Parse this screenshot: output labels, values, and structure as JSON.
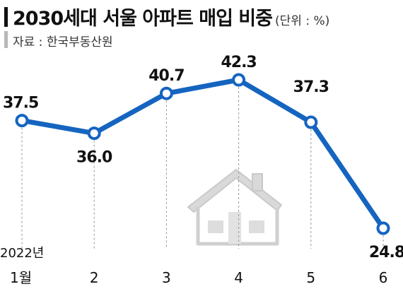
{
  "header": {
    "title": "2030세대 서울 아파트 매입 비중",
    "unit": "(단위 : %)",
    "source": "자료 : 한국부동산원"
  },
  "colors": {
    "line": "#1565c0",
    "marker_fill": "#ffffff",
    "guide": "#999999",
    "house": "#d4d4d4"
  },
  "house_icon": "house-icon",
  "chart_data": {
    "type": "line",
    "title": "2030세대 서울 아파트 매입 비중",
    "unit": "(단위 : %)",
    "year_label": "2022년",
    "categories": [
      "1월",
      "2",
      "3",
      "4",
      "5",
      "6"
    ],
    "values": [
      37.5,
      36.0,
      40.7,
      42.3,
      37.3,
      24.8
    ],
    "value_labels": [
      "37.5",
      "36.0",
      "40.7",
      "42.3",
      "37.3",
      "24.8"
    ],
    "ylim": [
      24.8,
      42.3
    ],
    "grid": false
  }
}
